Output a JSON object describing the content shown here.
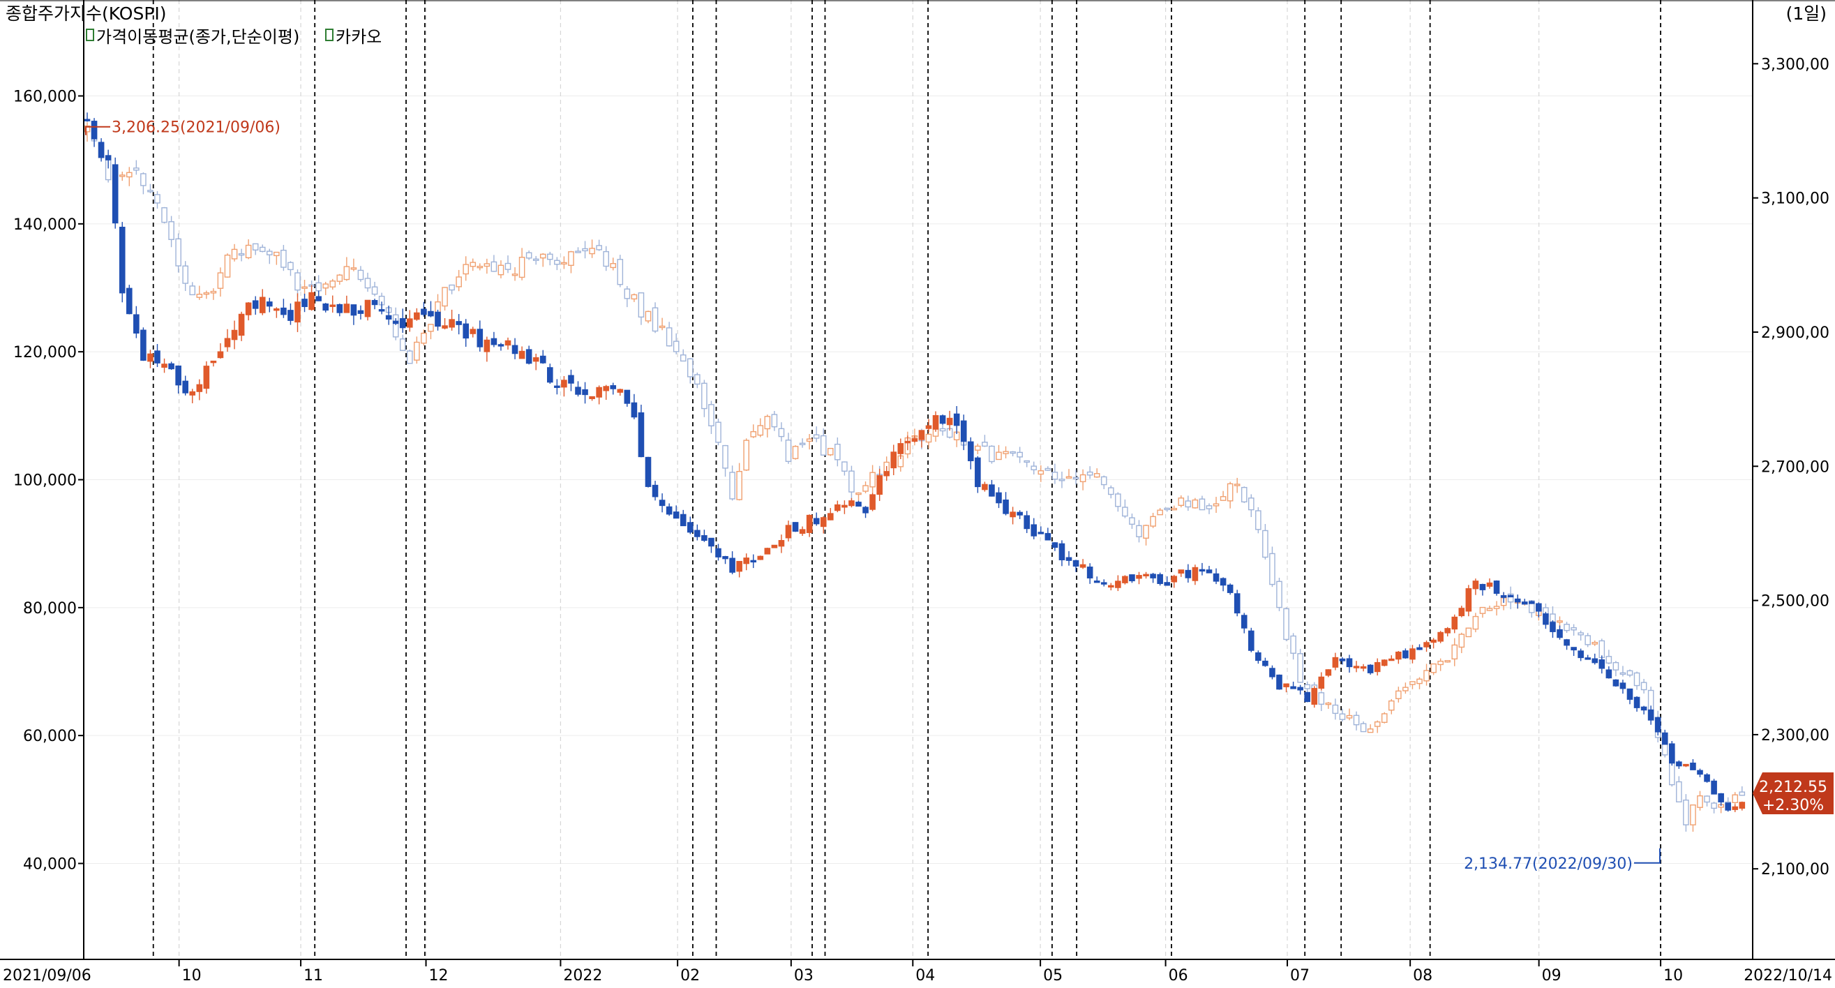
{
  "header": {
    "title": "종합주가지수(KOSPI)",
    "period": "(1일)"
  },
  "legend": [
    {
      "label": "가격이동평균(종가,단순이평)"
    },
    {
      "label": "카카오"
    }
  ],
  "colors": {
    "up": "#e05a2b",
    "down": "#1f4fb3",
    "kospi_up": "#f0a070",
    "kospi_down": "#9fb3d8",
    "frame": "#000000",
    "last_tag": "#c0391b"
  },
  "annotations": {
    "high": {
      "text": "3,206.25(2021/09/06)",
      "color": "#c0391b"
    },
    "low": {
      "text": "2,134.77(2022/09/30)",
      "color": "#1f4fb3"
    },
    "last_value": "2,212.55",
    "last_change": "+2.30%"
  },
  "chart_data": {
    "type": "candlestick",
    "x_start_label": "2021/09/06",
    "x_end_label": "2022/10/14",
    "month_labels": [
      "10",
      "11",
      "12",
      "2022",
      "02",
      "03",
      "04",
      "05",
      "06",
      "07",
      "08",
      "09",
      "10"
    ],
    "left_axis": {
      "ticks": [
        "160,000",
        "140,000",
        "120,000",
        "100,000",
        "80,000",
        "60,000",
        "40,000"
      ],
      "tick_values": [
        160000,
        140000,
        120000,
        100000,
        80000,
        60000,
        40000
      ],
      "range": [
        25000,
        175000
      ]
    },
    "right_axis": {
      "ticks": [
        "3,300,00",
        "3,100,00",
        "2,900,00",
        "2,700,00",
        "2,500,00",
        "2,300,00",
        "2,100,00"
      ],
      "tick_values": [
        3300,
        3100,
        2900,
        2700,
        2500,
        2300,
        2100
      ],
      "range": [
        1965,
        3395
      ]
    },
    "series": [
      {
        "name": "카카오",
        "axis": "left",
        "anchors": [
          [
            0,
            156000
          ],
          [
            3,
            150000
          ],
          [
            5,
            128000
          ],
          [
            8,
            119000
          ],
          [
            12,
            117000
          ],
          [
            15,
            113000
          ],
          [
            20,
            122000
          ],
          [
            24,
            128000
          ],
          [
            28,
            125000
          ],
          [
            32,
            128000
          ],
          [
            36,
            126000
          ],
          [
            40,
            127000
          ],
          [
            44,
            124000
          ],
          [
            48,
            126000
          ],
          [
            52,
            124000
          ],
          [
            56,
            122000
          ],
          [
            60,
            121000
          ],
          [
            64,
            118000
          ],
          [
            68,
            115000
          ],
          [
            72,
            114000
          ],
          [
            76,
            113000
          ],
          [
            78,
            110000
          ],
          [
            80,
            99000
          ],
          [
            84,
            94000
          ],
          [
            88,
            90000
          ],
          [
            92,
            86000
          ],
          [
            96,
            88000
          ],
          [
            100,
            92000
          ],
          [
            104,
            94000
          ],
          [
            108,
            97000
          ],
          [
            111,
            95000
          ],
          [
            114,
            102000
          ],
          [
            117,
            106000
          ],
          [
            121,
            110000
          ],
          [
            125,
            107000
          ],
          [
            127,
            100000
          ],
          [
            130,
            96000
          ],
          [
            134,
            93000
          ],
          [
            138,
            89000
          ],
          [
            142,
            86000
          ],
          [
            146,
            84000
          ],
          [
            150,
            85000
          ],
          [
            154,
            84000
          ],
          [
            158,
            86000
          ],
          [
            162,
            84000
          ],
          [
            166,
            74000
          ],
          [
            170,
            68000
          ],
          [
            174,
            66000
          ],
          [
            178,
            72000
          ],
          [
            182,
            70000
          ],
          [
            186,
            72000
          ],
          [
            190,
            73000
          ],
          [
            194,
            77000
          ],
          [
            198,
            84000
          ],
          [
            202,
            82000
          ],
          [
            206,
            80000
          ],
          [
            210,
            75000
          ],
          [
            214,
            72000
          ],
          [
            218,
            68000
          ],
          [
            222,
            64000
          ],
          [
            226,
            56000
          ],
          [
            230,
            54000
          ],
          [
            234,
            48000
          ],
          [
            236,
            50000
          ]
        ]
      },
      {
        "name": "KOSPI",
        "axis": "right",
        "anchors": [
          [
            0,
            3206
          ],
          [
            3,
            3130
          ],
          [
            5,
            3140
          ],
          [
            8,
            3125
          ],
          [
            10,
            3100
          ],
          [
            12,
            3050
          ],
          [
            14,
            2970
          ],
          [
            17,
            2950
          ],
          [
            20,
            3010
          ],
          [
            24,
            3030
          ],
          [
            28,
            3000
          ],
          [
            31,
            2960
          ],
          [
            34,
            2970
          ],
          [
            38,
            3000
          ],
          [
            42,
            2940
          ],
          [
            44,
            2900
          ],
          [
            46,
            2850
          ],
          [
            48,
            2900
          ],
          [
            51,
            2960
          ],
          [
            55,
            3010
          ],
          [
            58,
            2990
          ],
          [
            62,
            3000
          ],
          [
            66,
            3010
          ],
          [
            70,
            3020
          ],
          [
            74,
            3010
          ],
          [
            77,
            2960
          ],
          [
            80,
            2920
          ],
          [
            84,
            2880
          ],
          [
            87,
            2820
          ],
          [
            90,
            2730
          ],
          [
            92,
            2660
          ],
          [
            94,
            2740
          ],
          [
            96,
            2770
          ],
          [
            98,
            2760
          ],
          [
            100,
            2710
          ],
          [
            103,
            2740
          ],
          [
            106,
            2720
          ],
          [
            108,
            2690
          ],
          [
            110,
            2650
          ],
          [
            112,
            2680
          ],
          [
            114,
            2700
          ],
          [
            117,
            2735
          ],
          [
            121,
            2760
          ],
          [
            125,
            2740
          ],
          [
            128,
            2720
          ],
          [
            132,
            2710
          ],
          [
            136,
            2700
          ],
          [
            140,
            2680
          ],
          [
            144,
            2690
          ],
          [
            147,
            2640
          ],
          [
            150,
            2590
          ],
          [
            153,
            2630
          ],
          [
            157,
            2650
          ],
          [
            161,
            2640
          ],
          [
            164,
            2680
          ],
          [
            167,
            2600
          ],
          [
            170,
            2480
          ],
          [
            173,
            2380
          ],
          [
            177,
            2340
          ],
          [
            180,
            2320
          ],
          [
            183,
            2310
          ],
          [
            186,
            2350
          ],
          [
            190,
            2380
          ],
          [
            194,
            2420
          ],
          [
            198,
            2480
          ],
          [
            202,
            2500
          ],
          [
            206,
            2490
          ],
          [
            210,
            2470
          ],
          [
            214,
            2440
          ],
          [
            218,
            2400
          ],
          [
            222,
            2360
          ],
          [
            226,
            2230
          ],
          [
            228,
            2170
          ],
          [
            230,
            2210
          ],
          [
            233,
            2190
          ],
          [
            236,
            2212
          ]
        ]
      }
    ],
    "grid": true,
    "legend_position": "top-left"
  }
}
